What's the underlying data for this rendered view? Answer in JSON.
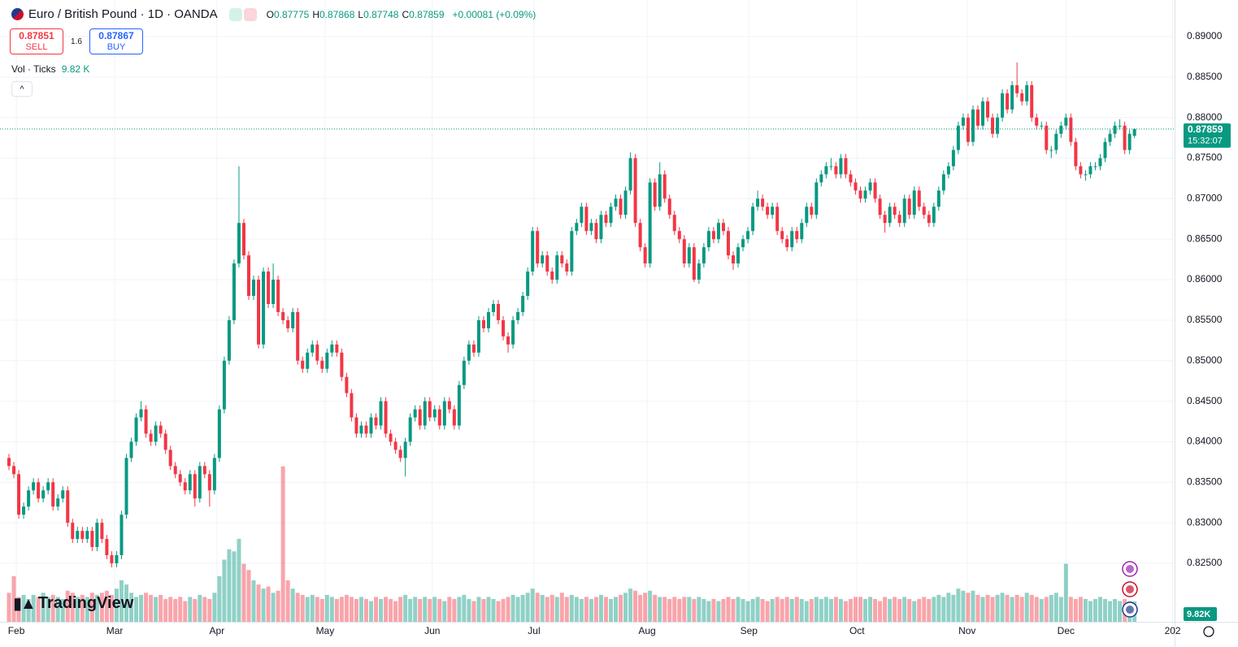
{
  "header": {
    "symbol": "Euro / British Pound · 1D · OANDA",
    "ohlc": [
      {
        "label": "O",
        "value": "0.87775"
      },
      {
        "label": "H",
        "value": "0.87868"
      },
      {
        "label": "L",
        "value": "0.87748"
      },
      {
        "label": "C",
        "value": "0.87859"
      }
    ],
    "change": "+0.00081 (+0.09%)",
    "sell": {
      "price": "0.87851",
      "label": "SELL"
    },
    "spread": "1.6",
    "buy": {
      "price": "0.87867",
      "label": "BUY"
    },
    "volume_legend": {
      "label": "Vol · Ticks",
      "value": "9.82 K"
    },
    "branding": "TradingView"
  },
  "chart_data": {
    "type": "candlestick",
    "up_color": "#089981",
    "down_color": "#f23645",
    "grid": true,
    "xlim": [
      -1.83,
      238.2
    ],
    "xticks": [
      {
        "value": 1.5,
        "label": "Feb"
      },
      {
        "value": 21.6,
        "label": "Mar"
      },
      {
        "value": 42.5,
        "label": "Apr"
      },
      {
        "value": 64.6,
        "label": "May"
      },
      {
        "value": 86.5,
        "label": "Jun"
      },
      {
        "value": 107.3,
        "label": "Jul"
      },
      {
        "value": 130.4,
        "label": "Aug"
      },
      {
        "value": 151.2,
        "label": "Sep"
      },
      {
        "value": 173.3,
        "label": "Oct"
      },
      {
        "value": 195.8,
        "label": "Nov"
      },
      {
        "value": 216,
        "label": "Dec"
      },
      {
        "value": 237.8,
        "label": "202"
      }
    ],
    "ylim": [
      0.81778,
      0.89451
    ],
    "yticks": [
      {
        "value": 0.825,
        "label": "0.82500"
      },
      {
        "value": 0.83,
        "label": "0.83000"
      },
      {
        "value": 0.835,
        "label": "0.83500"
      },
      {
        "value": 0.84,
        "label": "0.84000"
      },
      {
        "value": 0.845,
        "label": "0.84500"
      },
      {
        "value": 0.85,
        "label": "0.85000"
      },
      {
        "value": 0.855,
        "label": "0.85500"
      },
      {
        "value": 0.86,
        "label": "0.86000"
      },
      {
        "value": 0.865,
        "label": "0.86500"
      },
      {
        "value": 0.87,
        "label": "0.87000"
      },
      {
        "value": 0.875,
        "label": "0.87500"
      },
      {
        "value": 0.88,
        "label": "0.88000"
      },
      {
        "value": 0.885,
        "label": "0.88500"
      },
      {
        "value": 0.89,
        "label": "0.89000"
      }
    ],
    "last_price": {
      "value": 0.87859,
      "label": "0.87859"
    },
    "countdown": "15:32:07",
    "volume_ylim": [
      0,
      300
    ],
    "volume_label": "9.82K",
    "open": [
      0.838,
      0.837,
      0.836,
      0.831,
      0.832,
      0.834,
      0.835,
      0.833,
      0.834,
      0.835,
      0.832,
      0.833,
      0.834,
      0.83,
      0.828,
      0.829,
      0.828,
      0.829,
      0.827,
      0.83,
      0.828,
      0.826,
      0.825,
      0.826,
      0.831,
      0.838,
      0.84,
      0.843,
      0.844,
      0.841,
      0.84,
      0.842,
      0.841,
      0.839,
      0.837,
      0.836,
      0.835,
      0.834,
      0.836,
      0.833,
      0.837,
      0.836,
      0.834,
      0.838,
      0.844,
      0.85,
      0.855,
      0.862,
      0.867,
      0.863,
      0.858,
      0.86,
      0.852,
      0.861,
      0.857,
      0.86,
      0.856,
      0.855,
      0.854,
      0.856,
      0.85,
      0.849,
      0.851,
      0.852,
      0.85,
      0.849,
      0.851,
      0.852,
      0.851,
      0.848,
      0.846,
      0.843,
      0.841,
      0.842,
      0.841,
      0.843,
      0.842,
      0.845,
      0.841,
      0.84,
      0.839,
      0.838,
      0.84,
      0.843,
      0.844,
      0.842,
      0.845,
      0.843,
      0.844,
      0.842,
      0.845,
      0.844,
      0.842,
      0.847,
      0.85,
      0.852,
      0.851,
      0.855,
      0.854,
      0.856,
      0.857,
      0.855,
      0.853,
      0.852,
      0.855,
      0.856,
      0.858,
      0.861,
      0.866,
      0.862,
      0.863,
      0.861,
      0.86,
      0.863,
      0.862,
      0.861,
      0.866,
      0.867,
      0.869,
      0.866,
      0.867,
      0.865,
      0.868,
      0.867,
      0.869,
      0.87,
      0.868,
      0.871,
      0.875,
      0.867,
      0.864,
      0.862,
      0.872,
      0.869,
      0.873,
      0.87,
      0.868,
      0.866,
      0.865,
      0.862,
      0.864,
      0.86,
      0.862,
      0.864,
      0.866,
      0.865,
      0.867,
      0.866,
      0.863,
      0.862,
      0.864,
      0.865,
      0.866,
      0.869,
      0.87,
      0.869,
      0.868,
      0.869,
      0.866,
      0.865,
      0.864,
      0.866,
      0.865,
      0.867,
      0.869,
      0.868,
      0.872,
      0.873,
      0.874,
      0.874,
      0.873,
      0.875,
      0.873,
      0.872,
      0.871,
      0.87,
      0.871,
      0.872,
      0.87,
      0.868,
      0.867,
      0.869,
      0.868,
      0.867,
      0.87,
      0.868,
      0.871,
      0.869,
      0.868,
      0.867,
      0.869,
      0.871,
      0.873,
      0.874,
      0.876,
      0.879,
      0.88,
      0.877,
      0.881,
      0.879,
      0.882,
      0.88,
      0.878,
      0.88,
      0.883,
      0.881,
      0.884,
      0.883,
      0.882,
      0.884,
      0.88,
      0.879,
      0.879,
      0.876,
      0.876,
      0.878,
      0.879,
      0.88,
      0.877,
      0.874,
      0.873,
      0.873,
      0.874,
      0.874,
      0.875,
      0.877,
      0.878,
      0.879,
      0.879,
      0.876,
      0.87775
    ],
    "high": [
      0.8385,
      0.8375,
      0.8365,
      0.8325,
      0.8345,
      0.8355,
      0.8355,
      0.8345,
      0.8355,
      0.8355,
      0.8335,
      0.8345,
      0.8345,
      0.8305,
      0.8295,
      0.8295,
      0.8295,
      0.8295,
      0.8305,
      0.8305,
      0.8285,
      0.8265,
      0.8265,
      0.8315,
      0.8385,
      0.8405,
      0.8435,
      0.845,
      0.8445,
      0.8415,
      0.8425,
      0.8425,
      0.8415,
      0.8395,
      0.8375,
      0.8365,
      0.8355,
      0.8365,
      0.8365,
      0.8375,
      0.8375,
      0.8365,
      0.8385,
      0.8445,
      0.8505,
      0.8555,
      0.8625,
      0.874,
      0.8675,
      0.8635,
      0.8605,
      0.8605,
      0.8615,
      0.8615,
      0.862,
      0.8605,
      0.8565,
      0.8555,
      0.8565,
      0.8565,
      0.8505,
      0.8515,
      0.8525,
      0.8525,
      0.8505,
      0.8515,
      0.8525,
      0.8525,
      0.8515,
      0.8485,
      0.8465,
      0.8435,
      0.8425,
      0.8425,
      0.8435,
      0.8435,
      0.8455,
      0.8455,
      0.8415,
      0.8405,
      0.8395,
      0.8405,
      0.8435,
      0.8445,
      0.8445,
      0.8455,
      0.8455,
      0.8445,
      0.8445,
      0.8455,
      0.8455,
      0.8445,
      0.8475,
      0.8505,
      0.8525,
      0.8525,
      0.8555,
      0.8555,
      0.8565,
      0.8575,
      0.8575,
      0.8555,
      0.8535,
      0.8555,
      0.8565,
      0.8585,
      0.8615,
      0.8665,
      0.8665,
      0.8635,
      0.8635,
      0.8615,
      0.8635,
      0.8635,
      0.8625,
      0.8665,
      0.8675,
      0.8695,
      0.8695,
      0.8675,
      0.8675,
      0.8685,
      0.8685,
      0.8695,
      0.8705,
      0.8705,
      0.8715,
      0.8757,
      0.8755,
      0.8675,
      0.8645,
      0.8725,
      0.8725,
      0.8745,
      0.8735,
      0.8705,
      0.8685,
      0.8665,
      0.8655,
      0.8645,
      0.8645,
      0.8625,
      0.8645,
      0.8665,
      0.8665,
      0.8675,
      0.8675,
      0.8665,
      0.8635,
      0.8645,
      0.8655,
      0.8665,
      0.8695,
      0.871,
      0.8705,
      0.8695,
      0.8695,
      0.8695,
      0.8665,
      0.8655,
      0.8665,
      0.8665,
      0.8675,
      0.8695,
      0.8695,
      0.8725,
      0.8735,
      0.8745,
      0.875,
      0.8745,
      0.8755,
      0.8755,
      0.8735,
      0.8725,
      0.8715,
      0.8715,
      0.8725,
      0.8725,
      0.8705,
      0.8685,
      0.8695,
      0.8695,
      0.8685,
      0.8705,
      0.8705,
      0.8715,
      0.8715,
      0.8695,
      0.8685,
      0.8695,
      0.8715,
      0.8735,
      0.8745,
      0.8765,
      0.8795,
      0.8805,
      0.8805,
      0.8815,
      0.8815,
      0.8825,
      0.8825,
      0.8805,
      0.8805,
      0.8835,
      0.8835,
      0.8845,
      0.8868,
      0.8835,
      0.8845,
      0.8845,
      0.8805,
      0.8795,
      0.8795,
      0.8765,
      0.8785,
      0.8795,
      0.8805,
      0.8805,
      0.8775,
      0.8745,
      0.8735,
      0.8745,
      0.8745,
      0.8755,
      0.8775,
      0.8785,
      0.8795,
      0.8798,
      0.8795,
      0.8785,
      0.87868
    ],
    "low": [
      0.8365,
      0.8355,
      0.8305,
      0.8305,
      0.8315,
      0.8335,
      0.8325,
      0.8325,
      0.8335,
      0.8315,
      0.8315,
      0.8325,
      0.8295,
      0.8275,
      0.8275,
      0.8275,
      0.8275,
      0.8265,
      0.8265,
      0.8275,
      0.8255,
      0.8245,
      0.8245,
      0.8255,
      0.8305,
      0.8375,
      0.8395,
      0.8425,
      0.8405,
      0.8395,
      0.8395,
      0.8405,
      0.8385,
      0.8365,
      0.8355,
      0.8345,
      0.8335,
      0.8335,
      0.832,
      0.8325,
      0.8355,
      0.832,
      0.8335,
      0.8375,
      0.8435,
      0.8495,
      0.8545,
      0.8615,
      0.8625,
      0.8575,
      0.8575,
      0.8515,
      0.8515,
      0.8565,
      0.8565,
      0.8555,
      0.8545,
      0.8535,
      0.8535,
      0.8495,
      0.8485,
      0.8485,
      0.8505,
      0.8495,
      0.8485,
      0.8485,
      0.8505,
      0.8505,
      0.8475,
      0.8455,
      0.8425,
      0.8405,
      0.8405,
      0.8405,
      0.8405,
      0.8415,
      0.8415,
      0.8405,
      0.8395,
      0.8385,
      0.8375,
      0.8357,
      0.8395,
      0.8425,
      0.8415,
      0.8415,
      0.8425,
      0.8425,
      0.8415,
      0.8415,
      0.8435,
      0.8415,
      0.8415,
      0.8465,
      0.8495,
      0.8505,
      0.8505,
      0.8535,
      0.8535,
      0.8555,
      0.8545,
      0.8525,
      0.851,
      0.8515,
      0.8545,
      0.8555,
      0.8575,
      0.8605,
      0.8615,
      0.8615,
      0.8605,
      0.8595,
      0.8595,
      0.8615,
      0.8605,
      0.8605,
      0.8655,
      0.8665,
      0.8655,
      0.8655,
      0.8645,
      0.8645,
      0.8665,
      0.8665,
      0.8685,
      0.8675,
      0.8675,
      0.8705,
      0.8665,
      0.8635,
      0.8615,
      0.8615,
      0.8685,
      0.8685,
      0.8695,
      0.8675,
      0.8655,
      0.8645,
      0.8615,
      0.8615,
      0.8597,
      0.8595,
      0.8615,
      0.8635,
      0.8645,
      0.8645,
      0.8655,
      0.8625,
      0.8612,
      0.8615,
      0.8635,
      0.8645,
      0.8655,
      0.8685,
      0.8685,
      0.8675,
      0.8675,
      0.8655,
      0.8645,
      0.8635,
      0.8635,
      0.8645,
      0.8645,
      0.8665,
      0.8675,
      0.8675,
      0.8715,
      0.8725,
      0.8735,
      0.8725,
      0.8725,
      0.8725,
      0.8715,
      0.8705,
      0.8695,
      0.8695,
      0.8705,
      0.8695,
      0.8675,
      0.8658,
      0.8665,
      0.8675,
      0.8665,
      0.8665,
      0.8675,
      0.8675,
      0.8685,
      0.8675,
      0.8665,
      0.8665,
      0.8685,
      0.8705,
      0.8725,
      0.8735,
      0.8755,
      0.8785,
      0.8765,
      0.8765,
      0.8785,
      0.8785,
      0.8795,
      0.8775,
      0.8775,
      0.8795,
      0.8805,
      0.8805,
      0.8825,
      0.8815,
      0.8815,
      0.8795,
      0.8785,
      0.8785,
      0.8755,
      0.875,
      0.8755,
      0.8775,
      0.8785,
      0.8765,
      0.8735,
      0.8725,
      0.8722,
      0.8725,
      0.8735,
      0.8735,
      0.8745,
      0.8765,
      0.8775,
      0.8785,
      0.8755,
      0.8755,
      0.87748
    ],
    "close": [
      0.837,
      0.836,
      0.831,
      0.832,
      0.834,
      0.835,
      0.833,
      0.834,
      0.835,
      0.832,
      0.833,
      0.834,
      0.83,
      0.828,
      0.829,
      0.828,
      0.829,
      0.827,
      0.83,
      0.828,
      0.826,
      0.825,
      0.826,
      0.831,
      0.838,
      0.84,
      0.843,
      0.844,
      0.841,
      0.84,
      0.842,
      0.841,
      0.839,
      0.837,
      0.836,
      0.835,
      0.834,
      0.836,
      0.833,
      0.837,
      0.836,
      0.834,
      0.838,
      0.844,
      0.85,
      0.855,
      0.862,
      0.867,
      0.863,
      0.858,
      0.86,
      0.852,
      0.861,
      0.857,
      0.86,
      0.856,
      0.855,
      0.854,
      0.856,
      0.85,
      0.849,
      0.851,
      0.852,
      0.85,
      0.849,
      0.851,
      0.852,
      0.851,
      0.848,
      0.846,
      0.843,
      0.841,
      0.842,
      0.841,
      0.843,
      0.842,
      0.845,
      0.841,
      0.84,
      0.839,
      0.838,
      0.84,
      0.843,
      0.844,
      0.842,
      0.845,
      0.843,
      0.844,
      0.842,
      0.845,
      0.844,
      0.842,
      0.847,
      0.85,
      0.852,
      0.851,
      0.855,
      0.854,
      0.856,
      0.857,
      0.855,
      0.853,
      0.852,
      0.855,
      0.856,
      0.858,
      0.861,
      0.866,
      0.862,
      0.863,
      0.861,
      0.86,
      0.863,
      0.862,
      0.861,
      0.866,
      0.867,
      0.869,
      0.866,
      0.867,
      0.865,
      0.868,
      0.867,
      0.869,
      0.87,
      0.868,
      0.871,
      0.875,
      0.867,
      0.864,
      0.862,
      0.872,
      0.869,
      0.873,
      0.87,
      0.868,
      0.866,
      0.865,
      0.862,
      0.864,
      0.86,
      0.862,
      0.864,
      0.866,
      0.865,
      0.867,
      0.866,
      0.863,
      0.862,
      0.864,
      0.865,
      0.866,
      0.869,
      0.87,
      0.869,
      0.868,
      0.869,
      0.866,
      0.865,
      0.864,
      0.866,
      0.865,
      0.867,
      0.869,
      0.868,
      0.872,
      0.873,
      0.874,
      0.874,
      0.873,
      0.875,
      0.873,
      0.872,
      0.871,
      0.87,
      0.871,
      0.872,
      0.87,
      0.868,
      0.867,
      0.869,
      0.868,
      0.867,
      0.87,
      0.868,
      0.871,
      0.869,
      0.868,
      0.867,
      0.869,
      0.871,
      0.873,
      0.874,
      0.876,
      0.879,
      0.88,
      0.877,
      0.881,
      0.879,
      0.882,
      0.88,
      0.878,
      0.88,
      0.883,
      0.881,
      0.884,
      0.883,
      0.882,
      0.884,
      0.88,
      0.879,
      0.879,
      0.876,
      0.876,
      0.878,
      0.879,
      0.88,
      0.877,
      0.874,
      0.873,
      0.873,
      0.874,
      0.874,
      0.875,
      0.877,
      0.878,
      0.879,
      0.879,
      0.876,
      0.878,
      0.87859
    ],
    "volume": [
      14,
      22,
      12,
      13,
      11,
      13,
      12,
      14,
      12,
      13,
      12,
      11,
      15,
      14,
      12,
      13,
      12,
      14,
      13,
      14,
      15,
      13,
      16,
      20,
      18,
      14,
      12,
      13,
      14,
      13,
      12,
      13,
      11,
      12,
      11,
      12,
      10,
      12,
      11,
      13,
      12,
      11,
      14,
      22,
      30,
      35,
      34,
      40,
      28,
      25,
      20,
      18,
      16,
      17,
      14,
      15,
      75,
      20,
      16,
      14,
      13,
      12,
      13,
      12,
      11,
      13,
      12,
      11,
      12,
      13,
      12,
      11,
      12,
      11,
      10,
      12,
      11,
      12,
      11,
      10,
      12,
      13,
      11,
      12,
      11,
      12,
      11,
      12,
      11,
      10,
      12,
      11,
      12,
      13,
      11,
      10,
      12,
      11,
      12,
      11,
      10,
      11,
      12,
      13,
      12,
      13,
      14,
      16,
      14,
      13,
      12,
      13,
      12,
      14,
      12,
      13,
      12,
      11,
      12,
      11,
      12,
      13,
      12,
      11,
      12,
      13,
      14,
      16,
      15,
      13,
      14,
      15,
      13,
      12,
      12,
      11,
      12,
      11,
      12,
      12,
      11,
      12,
      11,
      10,
      11,
      10,
      11,
      12,
      11,
      12,
      11,
      10,
      11,
      12,
      11,
      10,
      11,
      12,
      11,
      12,
      11,
      12,
      11,
      10,
      11,
      12,
      11,
      12,
      11,
      12,
      11,
      10,
      11,
      12,
      12,
      11,
      12,
      11,
      10,
      12,
      11,
      12,
      11,
      12,
      11,
      10,
      11,
      12,
      11,
      12,
      13,
      12,
      14,
      13,
      16,
      15,
      14,
      15,
      13,
      12,
      13,
      12,
      13,
      14,
      13,
      12,
      13,
      12,
      14,
      13,
      12,
      11,
      12,
      13,
      14,
      12,
      28,
      12,
      11,
      12,
      11,
      10,
      11,
      12,
      11,
      10,
      11,
      10,
      11,
      10,
      9.82
    ]
  }
}
